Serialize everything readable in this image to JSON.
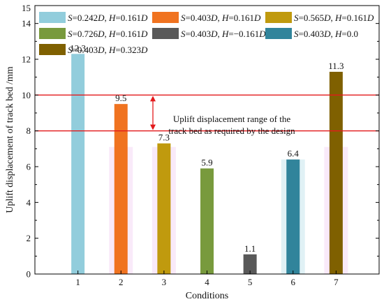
{
  "chart_data": {
    "type": "bar",
    "categories": [
      "1",
      "2",
      "3",
      "4",
      "5",
      "6",
      "7"
    ],
    "values": [
      12.3,
      9.5,
      7.3,
      5.9,
      1.1,
      6.4,
      11.3
    ],
    "data_labels": [
      "12.3",
      "9.5",
      "7.3",
      "5.9",
      "1.1",
      "6.4",
      "11.3"
    ],
    "colors": [
      "#92cddc",
      "#f07320",
      "#c09a0e",
      "#789a3d",
      "#595959",
      "#31849b",
      "#7f6000"
    ],
    "xlabel": "Conditions",
    "ylabel": "Uplift displacement of track bed /mm",
    "ylim": [
      0,
      15
    ],
    "yticks": [
      "0",
      "2",
      "4",
      "6",
      "8",
      "10",
      "12",
      "14"
    ],
    "yticks_minor": [
      "1",
      "3",
      "5",
      "7",
      "9",
      "11",
      "13",
      "15"
    ],
    "legend": {
      "placement": "top",
      "entries": [
        "S=0.242D, H=0.161D",
        "S=0.403D, H=0.161D",
        "S=0.565D, H=0.161D",
        "S=0.726D, H=0.161D",
        "S=0.403D, H=−0.161D",
        "S=0.403D, H=0.0",
        "S=0.403D, H=0.323D"
      ]
    },
    "reference_lines": [
      8,
      10
    ],
    "reference_color": "#e31a1c",
    "annotation": {
      "lines": [
        "Uplift displacement range of the",
        "track bed as required by the design"
      ]
    }
  }
}
